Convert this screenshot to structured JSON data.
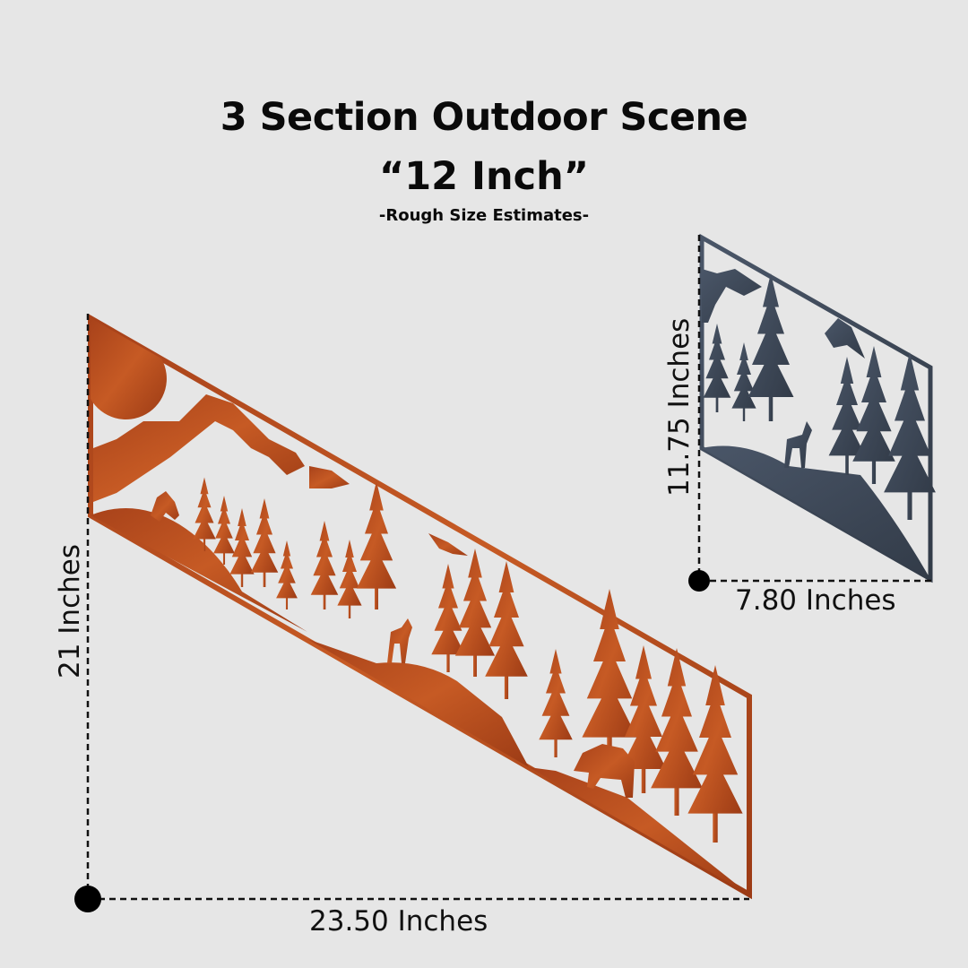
{
  "header": {
    "title": "3 Section Outdoor Scene",
    "size": "“12 Inch”",
    "note": "-Rough Size Estimates-"
  },
  "large_panel": {
    "color": "#b5501f",
    "height_label": "21  Inches",
    "width_label": "23.50  Inches",
    "sections": [
      "mountain-wolf-sun",
      "deer-eagle-forest",
      "bear-forest"
    ]
  },
  "small_panel": {
    "color": "#3e4a5a",
    "height_label": "11.75  Inches",
    "width_label": "7.80  Inches"
  }
}
